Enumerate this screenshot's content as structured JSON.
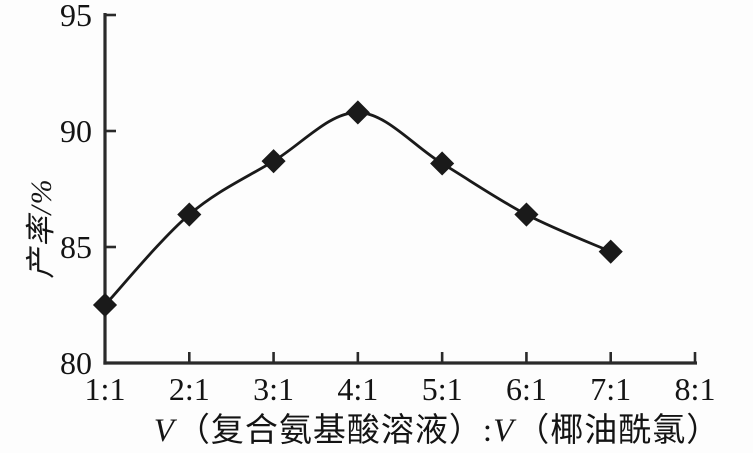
{
  "chart_data": {
    "type": "line",
    "title": "",
    "ylabel": "产率/%",
    "xlabel": "V（复合氨基酸溶液）:V（椰油酰氯）",
    "xlabel_parts": {
      "v1": "V",
      "t1": "（复合氨基酸溶液）:",
      "v2": "V",
      "t2": "（椰油酰氯）"
    },
    "x_tick_labels": [
      "1:1",
      "2:1",
      "3:1",
      "4:1",
      "5:1",
      "6:1",
      "7:1",
      "8:1"
    ],
    "y_tick_labels": [
      "80",
      "85",
      "90",
      "95"
    ],
    "yticks": [
      80,
      85,
      90,
      95
    ],
    "ylim": [
      80,
      95
    ],
    "series": [
      {
        "name": "产率",
        "x": [
          "1:1",
          "2:1",
          "3:1",
          "4:1",
          "5:1",
          "6:1",
          "7:1"
        ],
        "values": [
          82.5,
          86.4,
          88.7,
          90.8,
          88.6,
          86.4,
          84.8
        ]
      }
    ],
    "marker": "diamond",
    "legend_position": "none",
    "grid": false,
    "line_color": "#1a1a1a",
    "axis_color": "#2a2a2a",
    "background_color": "#fdfdfd"
  }
}
